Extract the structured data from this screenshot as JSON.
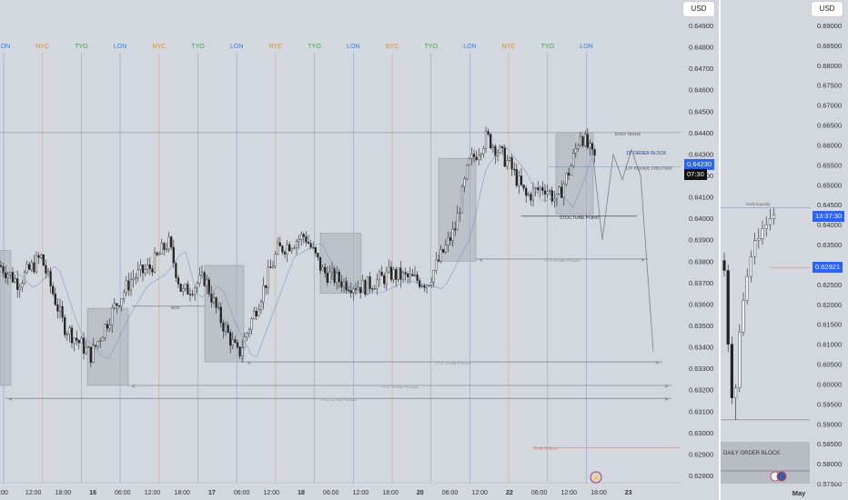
{
  "main": {
    "currency": "USD",
    "sessions": [
      {
        "label": "LON",
        "color": "#2f7ff0"
      },
      {
        "label": "NYC",
        "color": "#e58a1f"
      },
      {
        "label": "TYO",
        "color": "#3aa84a"
      },
      {
        "label": "LON",
        "color": "#2f7ff0"
      },
      {
        "label": "NYC",
        "color": "#e58a1f"
      },
      {
        "label": "TYO",
        "color": "#3aa84a"
      },
      {
        "label": "LON",
        "color": "#2f7ff0"
      },
      {
        "label": "NYC",
        "color": "#e58a1f"
      },
      {
        "label": "TYO",
        "color": "#3aa84a"
      },
      {
        "label": "LON",
        "color": "#2f7ff0"
      },
      {
        "label": "NYC",
        "color": "#e58a1f"
      },
      {
        "label": "TYO",
        "color": "#3aa84a"
      },
      {
        "label": "LON",
        "color": "#2f7ff0"
      },
      {
        "label": "NYC",
        "color": "#e58a1f"
      },
      {
        "label": "TYO",
        "color": "#3aa84a"
      },
      {
        "label": "LON",
        "color": "#2f7ff0"
      }
    ],
    "price_ticks": [
      "0.64900",
      "0.64800",
      "0.64700",
      "0.64600",
      "0.64500",
      "0.64400",
      "0.64300",
      "0.64200",
      "0.64100",
      "0.64000",
      "0.63900",
      "0.63800",
      "0.63700",
      "0.63600",
      "0.63500",
      "0.63400",
      "0.63300",
      "0.63200",
      "0.63100",
      "0.63000",
      "0.62900",
      "0.62800"
    ],
    "time_ticks": [
      {
        "label": ":00",
        "bold": false
      },
      {
        "label": "12:00",
        "bold": false
      },
      {
        "label": "18:00",
        "bold": false
      },
      {
        "label": "16",
        "bold": true
      },
      {
        "label": "06:00",
        "bold": false
      },
      {
        "label": "12:00",
        "bold": false
      },
      {
        "label": "18:00",
        "bold": false
      },
      {
        "label": "17",
        "bold": true
      },
      {
        "label": "06:00",
        "bold": false
      },
      {
        "label": "12:00",
        "bold": false
      },
      {
        "label": "18",
        "bold": true
      },
      {
        "label": "06:00",
        "bold": false
      },
      {
        "label": "12:00",
        "bold": false
      },
      {
        "label": "18:00",
        "bold": false
      },
      {
        "label": "20",
        "bold": true
      },
      {
        "label": "06:00",
        "bold": false
      },
      {
        "label": "12:00",
        "bold": false
      },
      {
        "label": "22",
        "bold": true
      },
      {
        "label": "06:00",
        "bold": false
      },
      {
        "label": "12:00",
        "bold": false
      },
      {
        "label": "18:00",
        "bold": false
      },
      {
        "label": "23",
        "bold": true
      }
    ],
    "current_price": "0.64230",
    "countdown": "07:30",
    "accent_color": "#2962ff",
    "annotations": {
      "daily_high": "DAILY HIGHS",
      "order_block": "15' ORDER BLOCK",
      "liquidity": "LTF RQUIDE CREATION",
      "structure_point": "STOCTURE POINT",
      "bos": "BOS",
      "tyo_1": "TYO TO BE FILLED",
      "tyo_2": "TYO TO BE FILLED",
      "tyo_3": "TYO TO BE FILLED",
      "tyo_4": "TYO TO BE FILLED",
      "lower_label": "Daily Bottom"
    }
  },
  "side": {
    "currency": "USD",
    "price_ticks": [
      "0.69000",
      "0.68500",
      "0.68000",
      "0.67500",
      "0.67000",
      "0.66500",
      "0.66000",
      "0.65500",
      "0.65000",
      "0.64500",
      "0.64000",
      "0.63500",
      "0.63000",
      "0.62500",
      "0.62000",
      "0.61500",
      "0.61000",
      "0.60500",
      "0.60000",
      "0.59500",
      "0.59000",
      "0.58500",
      "0.58000",
      "0.57500"
    ],
    "time_label": "May",
    "countdown_tag": "13:37:30",
    "price_tag": "0.62921",
    "order_block_label": "DAILY ORDER BLOCK",
    "top_label": "Daily liquidity"
  }
}
